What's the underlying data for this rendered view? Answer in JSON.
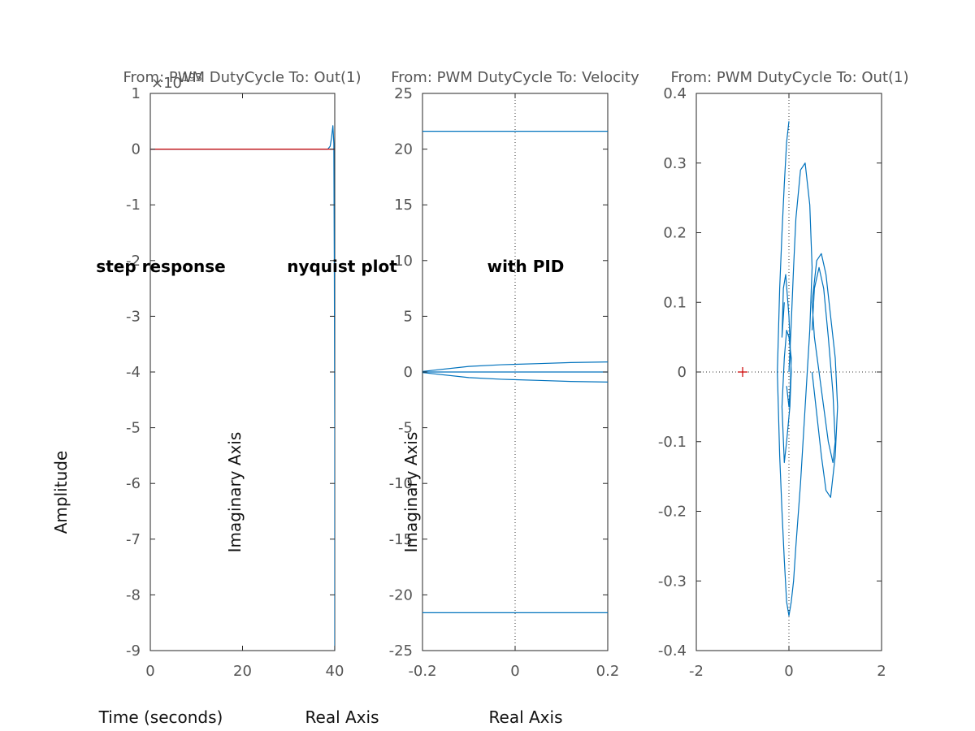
{
  "chart_data": [
    {
      "type": "line",
      "title": "From: PWM DutyCycle  To: Out(1)",
      "xlabel": "Time (seconds)",
      "ylabel": "Amplitude",
      "xlim": [
        0,
        40
      ],
      "ylim": [
        -9,
        1
      ],
      "xticks": [
        0,
        20,
        40
      ],
      "yticks": [
        1,
        0,
        -1,
        -2,
        -3,
        -4,
        -5,
        -6,
        -7,
        -8,
        -9
      ],
      "exponent_label": "×10^{193}",
      "grid": false,
      "series": [
        {
          "color": "#0072bd",
          "x": [
            0,
            38.5,
            39.0,
            39.3,
            39.6,
            39.8,
            39.9,
            40.0,
            40.0
          ],
          "y": [
            0,
            0,
            0.05,
            0.2,
            0.42,
            0.1,
            -2.0,
            -5.0,
            -9.0
          ]
        },
        {
          "color": "#cc0000",
          "x": [
            0,
            40
          ],
          "y": [
            0,
            0
          ]
        }
      ]
    },
    {
      "type": "line",
      "title": "From: PWM DutyCycle  To: Velocity",
      "xlabel": "Real Axis",
      "ylabel": "Imaginary Axis",
      "xlim": [
        -0.2,
        0.2
      ],
      "ylim": [
        -25,
        25
      ],
      "xticks": [
        -0.2,
        0,
        0.2
      ],
      "yticks": [
        25,
        20,
        15,
        10,
        5,
        0,
        -5,
        -10,
        -15,
        -20,
        -25
      ],
      "grid": "origin-dotted",
      "series": [
        {
          "color": "#0072bd",
          "x": [
            -0.2,
            0.2
          ],
          "y": [
            21.6,
            21.6
          ]
        },
        {
          "color": "#0072bd",
          "x": [
            -0.2,
            0.2
          ],
          "y": [
            -21.6,
            -21.6
          ]
        },
        {
          "color": "#0072bd",
          "x": [
            -0.2,
            -0.1,
            -0.03,
            0.05,
            0.12,
            0.2
          ],
          "y": [
            0.05,
            0.5,
            0.65,
            0.75,
            0.85,
            0.9
          ]
        },
        {
          "color": "#0072bd",
          "x": [
            -0.2,
            -0.1,
            -0.03,
            0.05,
            0.12,
            0.2
          ],
          "y": [
            -0.05,
            -0.5,
            -0.65,
            -0.75,
            -0.85,
            -0.9
          ]
        },
        {
          "color": "#0072bd",
          "x": [
            -0.2,
            0.2
          ],
          "y": [
            0,
            0
          ]
        }
      ]
    },
    {
      "type": "line",
      "title": "From: PWM DutyCycle  To: Out(1)",
      "xlabel": "Real Axis",
      "ylabel": "",
      "xlim": [
        -2,
        2
      ],
      "ylim": [
        -0.4,
        0.4
      ],
      "xticks": [
        -2,
        0,
        2
      ],
      "yticks": [
        0.4,
        0.3,
        0.2,
        0.1,
        0,
        -0.1,
        -0.2,
        -0.3,
        -0.4
      ],
      "critical_point": [
        -1,
        0
      ],
      "grid": "origin-dotted",
      "series": [
        {
          "color": "#0072bd",
          "x": [
            0,
            -0.05,
            -0.1,
            -0.15,
            -0.2,
            -0.25,
            -0.2,
            -0.15,
            -0.1,
            -0.05,
            0,
            0.05,
            0.1,
            0.15,
            0.25,
            0.35,
            0.45,
            0.5,
            0.45,
            0.35,
            0.25,
            0.15,
            0.1,
            0.05,
            0
          ],
          "y": [
            0.36,
            0.33,
            0.27,
            0.2,
            0.12,
            0,
            -0.12,
            -0.2,
            -0.27,
            -0.33,
            -0.35,
            -0.33,
            -0.3,
            -0.25,
            -0.16,
            -0.05,
            0.06,
            0.15,
            0.24,
            0.3,
            0.29,
            0.22,
            0.15,
            0.07,
            0
          ]
        },
        {
          "color": "#0072bd",
          "x": [
            -0.1,
            -0.15,
            -0.12,
            -0.07,
            0,
            0.05,
            0.02,
            -0.05,
            -0.1,
            -0.15,
            -0.1,
            -0.05,
            0,
            0.05,
            0.03,
            0,
            -0.05
          ],
          "y": [
            0.1,
            0.05,
            0.12,
            0.14,
            0.08,
            0,
            -0.05,
            -0.1,
            -0.13,
            -0.05,
            0.02,
            0.06,
            0.05,
            0.02,
            -0.02,
            -0.05,
            -0.02
          ]
        },
        {
          "color": "#0072bd",
          "x": [
            0.5,
            0.6,
            0.7,
            0.8,
            0.9,
            1.0,
            1.05,
            1.0,
            0.9,
            0.8,
            0.7,
            0.6,
            0.5,
            0.55,
            0.65,
            0.75,
            0.85,
            0.95,
            1.0,
            0.95,
            0.85,
            0.75,
            0.65,
            0.55,
            0.5
          ],
          "y": [
            0,
            -0.06,
            -0.12,
            -0.17,
            -0.18,
            -0.12,
            -0.05,
            0.02,
            0.08,
            0.14,
            0.17,
            0.16,
            0.1,
            0.05,
            0.0,
            -0.05,
            -0.1,
            -0.13,
            -0.1,
            -0.03,
            0.05,
            0.12,
            0.15,
            0.12,
            0.06
          ]
        }
      ]
    }
  ],
  "annotations": {
    "step": "step response",
    "nyquist": "nyquist plot",
    "pid": "with PID"
  }
}
